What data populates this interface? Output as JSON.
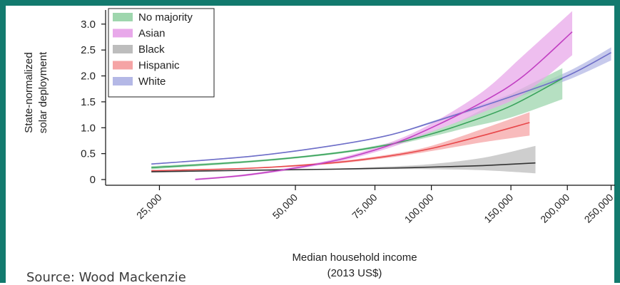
{
  "frame": {
    "accent": "#127a6e"
  },
  "source_note": "Source: Wood Mackenzie",
  "chart_data": {
    "type": "line",
    "title": "",
    "xlabel_line1": "Median household income",
    "xlabel_line2": "(2013 US$)",
    "ylabel_line1": "State-normalized",
    "ylabel_line2": "solar deployment",
    "x_scale": "log",
    "xlim": [
      19000,
      255000
    ],
    "ylim": [
      0,
      3.3
    ],
    "x_ticks": [
      25000,
      50000,
      75000,
      100000,
      150000,
      200000,
      250000
    ],
    "x_tick_labels": [
      "25,000",
      "50,000",
      "75,000",
      "100,000",
      "150,000",
      "200,000",
      "250,000"
    ],
    "y_ticks": [
      0,
      0.5,
      1.0,
      1.5,
      2.0,
      2.5,
      3.0
    ],
    "y_tick_labels": [
      "0",
      "0.5",
      "1.0",
      "1.5",
      "2.0",
      "2.5",
      "3.0"
    ],
    "legend_position": "top-left",
    "series": [
      {
        "name": "No majority",
        "color": "#3aa35c",
        "band_color": "#9ed6ad",
        "x": [
          24000,
          40000,
          60000,
          80000,
          100000,
          120000,
          150000,
          195000
        ],
        "y": [
          0.23,
          0.35,
          0.5,
          0.67,
          0.88,
          1.1,
          1.42,
          1.95
        ],
        "lower": [
          0.2,
          0.33,
          0.48,
          0.64,
          0.83,
          1.0,
          1.2,
          1.55
        ],
        "upper": [
          0.26,
          0.37,
          0.52,
          0.7,
          0.93,
          1.2,
          1.65,
          2.15
        ]
      },
      {
        "name": "Asian",
        "color": "#c13fc2",
        "band_color": "#e8a8ea",
        "x": [
          30000,
          40000,
          60000,
          80000,
          100000,
          130000,
          160000,
          205000
        ],
        "y": [
          0.0,
          0.1,
          0.35,
          0.65,
          1.0,
          1.5,
          2.0,
          2.85
        ],
        "lower": [
          0.0,
          0.08,
          0.32,
          0.6,
          0.92,
          1.3,
          1.65,
          2.4
        ],
        "upper": [
          0.02,
          0.12,
          0.38,
          0.7,
          1.08,
          1.7,
          2.4,
          3.25
        ]
      },
      {
        "name": "Black",
        "color": "#333333",
        "band_color": "#bdbdbd",
        "x": [
          24000,
          40000,
          60000,
          80000,
          100000,
          130000,
          170000
        ],
        "y": [
          0.15,
          0.18,
          0.2,
          0.22,
          0.24,
          0.27,
          0.32
        ],
        "lower": [
          0.14,
          0.17,
          0.19,
          0.2,
          0.2,
          0.18,
          0.12
        ],
        "upper": [
          0.16,
          0.19,
          0.21,
          0.25,
          0.3,
          0.42,
          0.65
        ]
      },
      {
        "name": "Hispanic",
        "color": "#e8474a",
        "band_color": "#f5a4a5",
        "x": [
          24000,
          40000,
          60000,
          80000,
          100000,
          130000,
          165000
        ],
        "y": [
          0.17,
          0.22,
          0.32,
          0.45,
          0.6,
          0.85,
          1.1
        ],
        "lower": [
          0.16,
          0.21,
          0.3,
          0.42,
          0.55,
          0.72,
          0.85
        ],
        "upper": [
          0.18,
          0.23,
          0.34,
          0.48,
          0.65,
          0.98,
          1.3
        ]
      },
      {
        "name": "White",
        "color": "#6e6ec8",
        "band_color": "#b4b8e6",
        "x": [
          24000,
          40000,
          60000,
          80000,
          100000,
          150000,
          200000,
          250000
        ],
        "y": [
          0.3,
          0.45,
          0.65,
          0.85,
          1.1,
          1.6,
          2.0,
          2.45
        ],
        "lower": [
          0.29,
          0.44,
          0.64,
          0.84,
          1.08,
          1.55,
          1.92,
          2.3
        ],
        "upper": [
          0.31,
          0.46,
          0.66,
          0.86,
          1.12,
          1.65,
          2.08,
          2.55
        ]
      }
    ]
  }
}
